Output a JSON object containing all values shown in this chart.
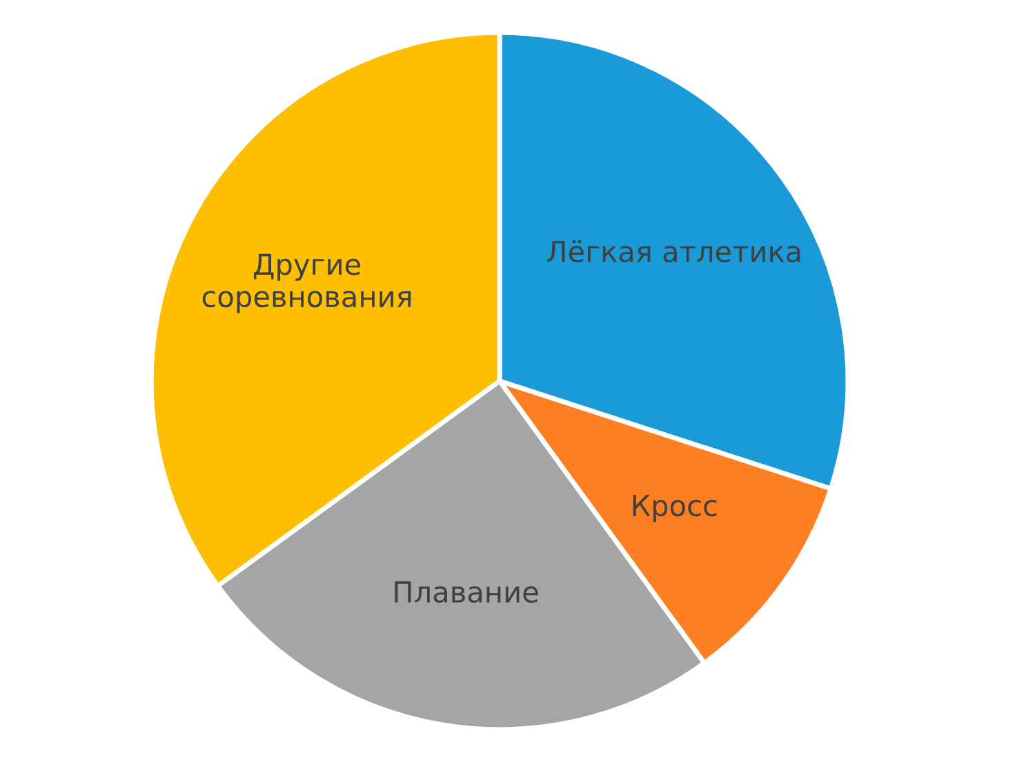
{
  "chart_data": {
    "type": "pie",
    "categories": [
      "Лёгкая атлетика",
      "Кросс",
      "Плавание",
      "Другие\nсоревнования"
    ],
    "values": [
      30,
      10,
      25,
      35
    ],
    "colors": [
      "#1a9ad6",
      "#fd7f21",
      "#a5a5a5",
      "#fdbf00"
    ],
    "legend": false
  }
}
